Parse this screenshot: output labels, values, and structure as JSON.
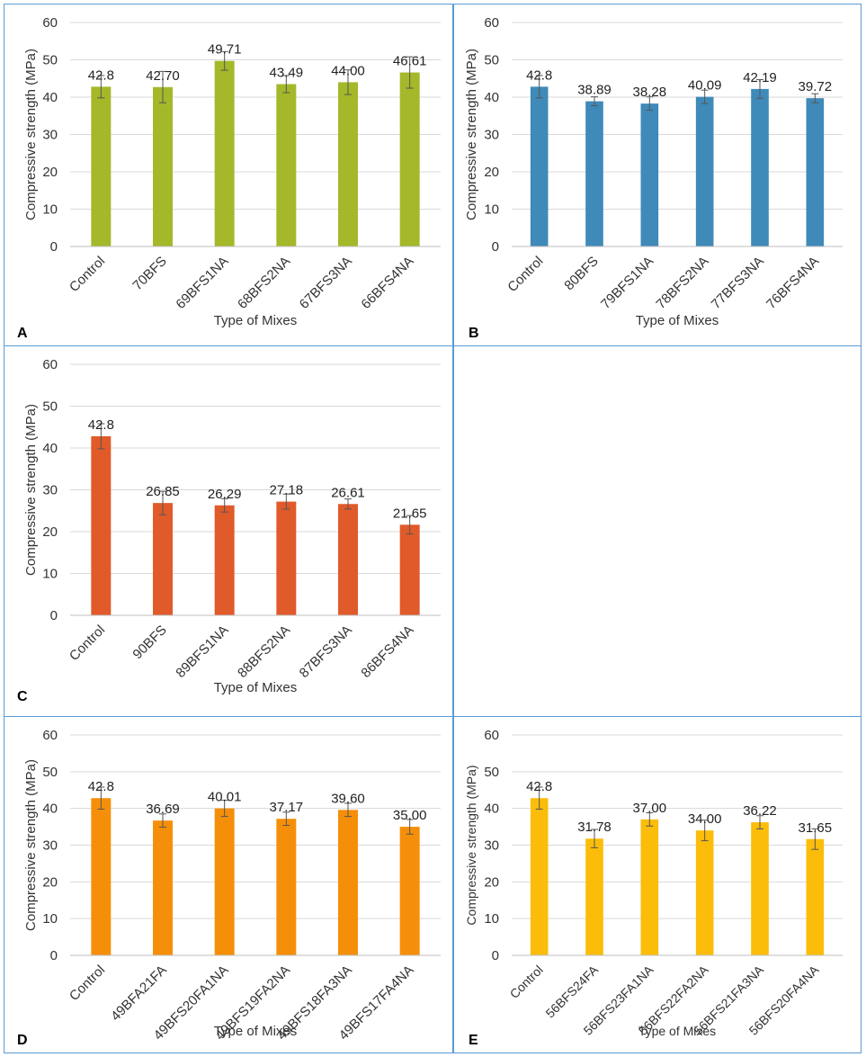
{
  "chart_data": [
    {
      "panel": "A",
      "type": "bar",
      "color": "#a5b82a",
      "xlabel": "Type of Mixes",
      "ylabel": "Compressive strength (MPa)",
      "ylim": [
        0,
        60
      ],
      "yticks": [
        "0",
        "10",
        "20",
        "30",
        "40",
        "50",
        "60"
      ],
      "categories": [
        "Control",
        "70BFS",
        "69BFS1NA",
        "68BFS2NA",
        "67BFS3NA",
        "66BFS4NA"
      ],
      "values": [
        42.8,
        42.7,
        49.71,
        43.49,
        44.0,
        46.61
      ],
      "errors": [
        3.0,
        4.2,
        2.5,
        2.3,
        3.3,
        4.2
      ],
      "labels": [
        "42.8",
        "42.70",
        "49.71",
        "43.49",
        "44.00",
        "46.61"
      ],
      "grid": true
    },
    {
      "panel": "B",
      "type": "bar",
      "color": "#3f8ab9",
      "xlabel": "Type of Mixes",
      "ylabel": "Compressive strength (MPa)",
      "ylim": [
        0,
        60
      ],
      "yticks": [
        "0",
        "10",
        "20",
        "30",
        "40",
        "50",
        "60"
      ],
      "categories": [
        "Control",
        "80BFS",
        "79BFS1NA",
        "78BFS2NA",
        "77BFS3NA",
        "76BFS4NA"
      ],
      "values": [
        42.8,
        38.89,
        38.28,
        40.09,
        42.19,
        39.72
      ],
      "errors": [
        3.0,
        1.2,
        1.8,
        1.8,
        2.5,
        1.2
      ],
      "labels": [
        "42.8",
        "38.89",
        "38.28",
        "40.09",
        "42.19",
        "39.72"
      ],
      "grid": true
    },
    {
      "panel": "C",
      "type": "bar",
      "color": "#e05a2a",
      "xlabel": "Type of Mixes",
      "ylabel": "Compressive strength (MPa)",
      "ylim": [
        0,
        60
      ],
      "yticks": [
        "0",
        "10",
        "20",
        "30",
        "40",
        "50",
        "60"
      ],
      "categories": [
        "Control",
        "90BFS",
        "89BFS1NA",
        "88BFS2NA",
        "87BFS3NA",
        "86BFS4NA"
      ],
      "values": [
        42.8,
        26.85,
        26.29,
        27.18,
        26.61,
        21.65
      ],
      "errors": [
        3.0,
        2.8,
        1.6,
        1.8,
        1.2,
        2.2
      ],
      "labels": [
        "42.8",
        "26.85",
        "26.29",
        "27.18",
        "26.61",
        "21.65"
      ],
      "grid": true
    },
    {
      "panel": "D",
      "type": "bar",
      "color": "#f58f0a",
      "xlabel": "Type of Mixes",
      "ylabel": "Compressive strength (MPa)",
      "ylim": [
        0,
        60
      ],
      "yticks": [
        "0",
        "10",
        "20",
        "30",
        "40",
        "50",
        "60"
      ],
      "categories": [
        "Control",
        "49BFA21FA",
        "49BFS20FA1NA",
        "49BFS19FA2NA",
        "49BFS18FA3NA",
        "49BFS17FA4NA"
      ],
      "values": [
        42.8,
        36.69,
        40.01,
        37.17,
        39.6,
        35.0
      ],
      "errors": [
        3.0,
        1.8,
        2.2,
        1.8,
        1.8,
        2.0
      ],
      "labels": [
        "42.8",
        "36.69",
        "40.01",
        "37.17",
        "39.60",
        "35.00"
      ],
      "grid": true
    },
    {
      "panel": "E",
      "type": "bar",
      "color": "#fbbd0a",
      "xlabel": "Type of Mixes",
      "ylabel": "Compressive strength (MPa)",
      "ylim": [
        0,
        60
      ],
      "yticks": [
        "0",
        "10",
        "20",
        "30",
        "40",
        "50",
        "60"
      ],
      "categories": [
        "Control",
        "56BFS24FA",
        "56BFS23FA1NA",
        "56BFS22FA2NA",
        "56BFS21FA3NA",
        "56BFS20FA4NA"
      ],
      "values": [
        42.8,
        31.78,
        37.0,
        34.0,
        36.22,
        31.65
      ],
      "errors": [
        3.0,
        2.5,
        1.8,
        2.8,
        1.8,
        2.8
      ],
      "labels": [
        "42.8",
        "31.78",
        "37.00",
        "34.00",
        "36.22",
        "31.65"
      ],
      "grid": true
    }
  ]
}
